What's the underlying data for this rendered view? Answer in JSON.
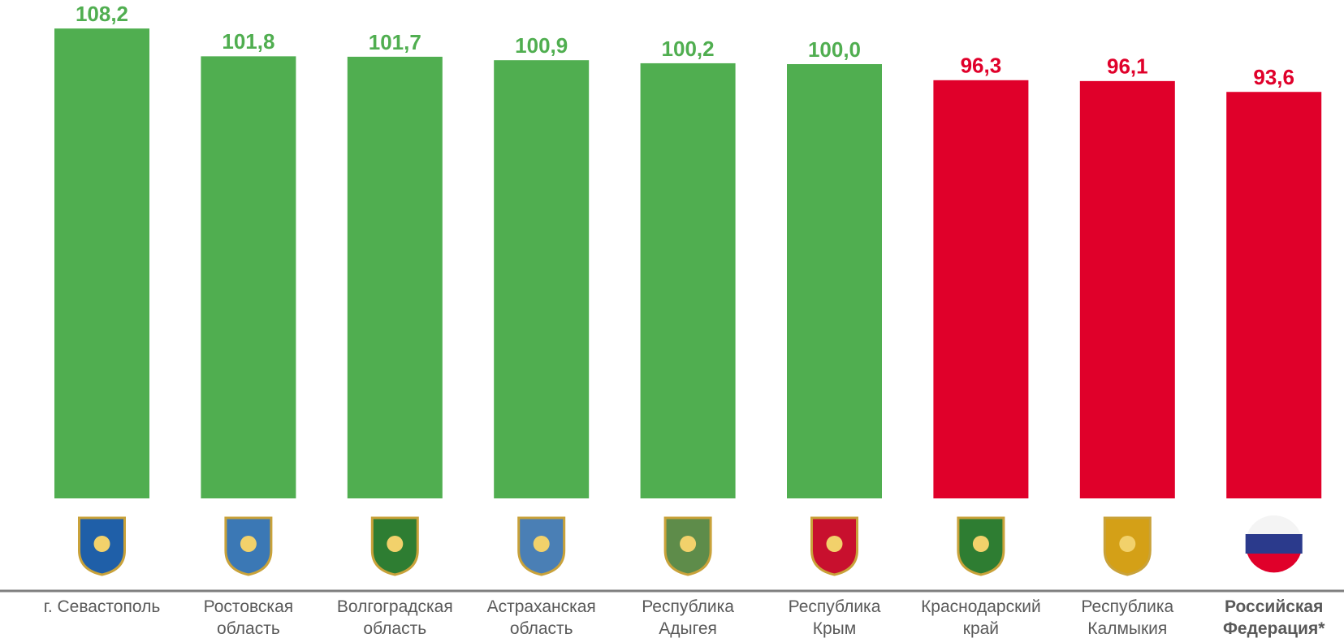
{
  "chart_data": {
    "type": "bar",
    "categories": [
      "г. Севастополь",
      "Ростовская\nобласть",
      "Волгоградская\nобласть",
      "Астраханская\nобласть",
      "Республика\nАдыгея",
      "Республика\nКрым",
      "Краснодарский\nкрай",
      "Республика\nКалмыкия",
      "Российская\nФедерация*"
    ],
    "values": [
      108.2,
      101.8,
      101.7,
      100.9,
      100.2,
      100.0,
      96.3,
      96.1,
      93.6
    ],
    "value_labels": [
      "108,2",
      "101,8",
      "101,7",
      "100,9",
      "100,2",
      "100,0",
      "96,3",
      "96,1",
      "93,6"
    ],
    "colors": [
      "#50ae50",
      "#50ae50",
      "#50ae50",
      "#50ae50",
      "#50ae50",
      "#50ae50",
      "#e0002a",
      "#e0002a",
      "#e0002a"
    ],
    "ylim": [
      0,
      110
    ],
    "bold_last_category": true
  }
}
